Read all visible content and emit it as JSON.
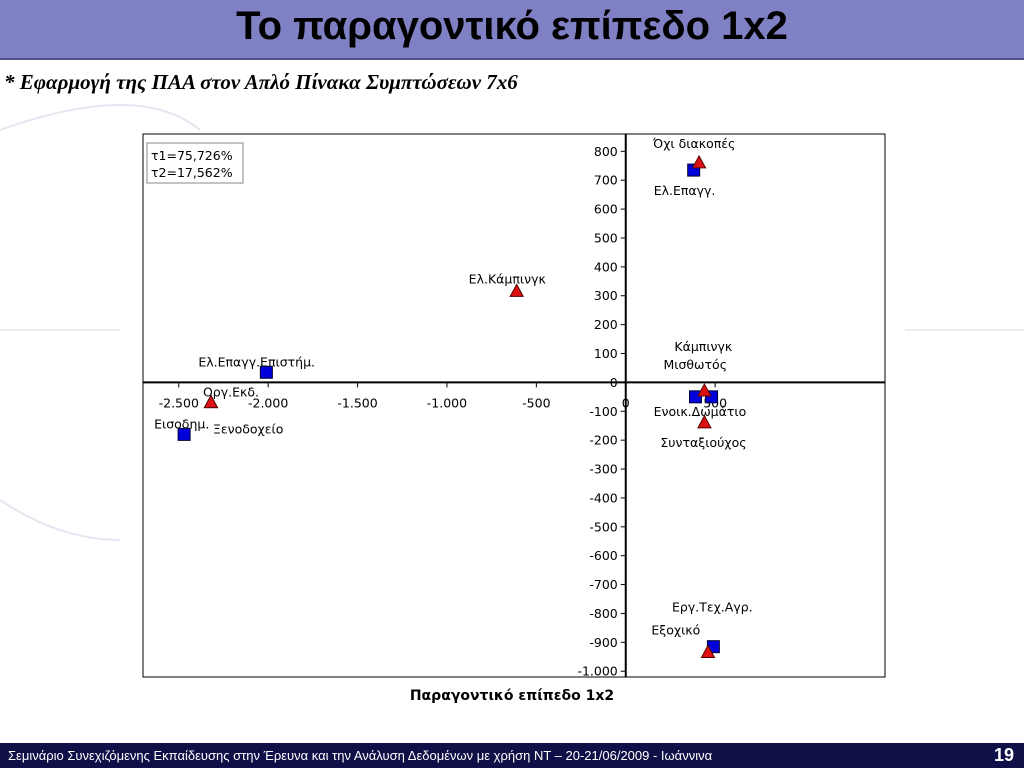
{
  "slide": {
    "title": "Το παραγοντικό επίπεδο 1x2",
    "subtitle": "* Εφαρμογή της ΠΑΑ στον Απλό Πίνακα Συμπτώσεων 7x6",
    "footer": "Σεμινάριο Συνεχιζόμενης Εκπαίδευσης στην Έρευνα και την Ανάλυση Δεδομένων με χρήση ΝΤ – 20-21/06/2009 - Ιωάννινα",
    "page_number": "19"
  },
  "chart_data": {
    "type": "scatter",
    "xlabel": "Παραγοντικό επίπεδο 1x2",
    "ylabel": "",
    "xlim": [
      -2700,
      1450
    ],
    "ylim": [
      -1020,
      860
    ],
    "x_ticks": [
      -2500,
      -2000,
      -1500,
      -1000,
      -500,
      0,
      500
    ],
    "x_tick_labels": [
      "-2.500",
      "-2.000",
      "-1.500",
      "-1.000",
      "-500",
      "0",
      "500"
    ],
    "y_ticks": [
      800,
      700,
      600,
      500,
      400,
      300,
      200,
      100,
      0,
      -100,
      -200,
      -300,
      -400,
      -500,
      -600,
      -700,
      -800,
      -900,
      -1000
    ],
    "y_tick_labels": [
      "800",
      "700",
      "600",
      "500",
      "400",
      "300",
      "200",
      "100",
      "0",
      "-100",
      "-200",
      "-300",
      "-400",
      "-500",
      "-600",
      "-700",
      "-800",
      "-900",
      "-1.000"
    ],
    "inertia_box": [
      "τ1=75,726%",
      "τ2=17,562%"
    ],
    "colors": {
      "square": "#0000dd",
      "triangle": "#dd1111",
      "axis": "#000000",
      "frame": "#000000"
    },
    "series": [
      {
        "marker": "square",
        "points": [
          {
            "label": "Ελ.Επαγγ.",
            "x": 380,
            "y": 735
          },
          {
            "label": "Ελ.Επαγγ.Επιστήμ.",
            "x": -2010,
            "y": 35
          },
          {
            "label": "Εισοδημ.",
            "x": -2470,
            "y": -180
          },
          {
            "label": "Μισθωτός",
            "x": 390,
            "y": -50
          },
          {
            "label": "Ενοικ.Δωμάτιο",
            "x": 480,
            "y": -50
          },
          {
            "label": "Εξοχικό",
            "x": 490,
            "y": -915
          }
        ]
      },
      {
        "marker": "triangle",
        "points": [
          {
            "label": "Όχι διακοπές",
            "x": 410,
            "y": 760
          },
          {
            "label": "Ελ.Κάμπινγκ",
            "x": -610,
            "y": 315
          },
          {
            "label": "Οργ.Εκδ.",
            "x": -2320,
            "y": -70
          },
          {
            "label": "Ξενοδοχείο",
            "x": -2320,
            "y": -70
          },
          {
            "label": "Κάμπινγκ",
            "x": 440,
            "y": -30
          },
          {
            "label": "Συνταξιούχος",
            "x": 440,
            "y": -140
          },
          {
            "label": "Εργ.Τεχ.Αγρ.",
            "x": 460,
            "y": -935
          }
        ]
      }
    ]
  }
}
